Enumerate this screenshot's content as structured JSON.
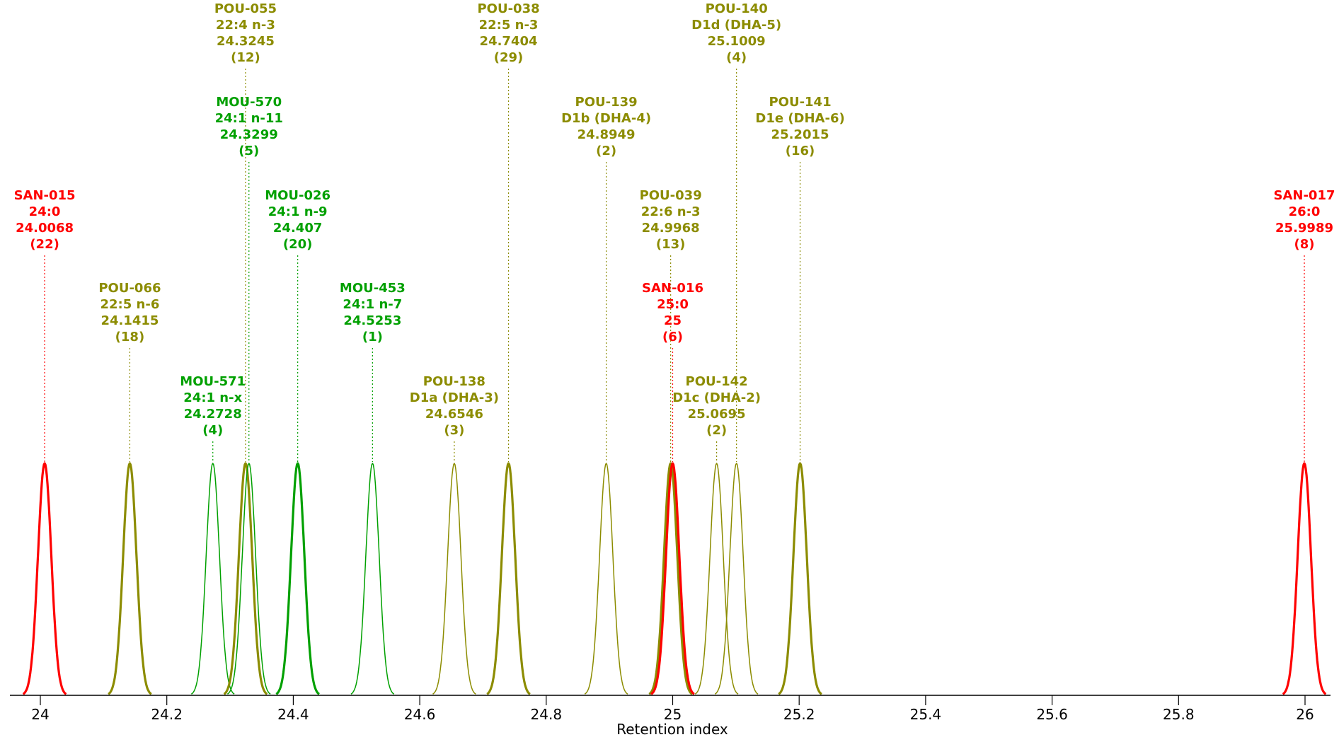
{
  "chart_data": {
    "type": "line",
    "xlabel": "Retention index",
    "xlim": [
      23.95,
      26.05
    ],
    "x_ticks": [
      {
        "value": 24,
        "label": "24"
      },
      {
        "value": 24.2,
        "label": "24.2"
      },
      {
        "value": 24.4,
        "label": "24.4"
      },
      {
        "value": 24.6,
        "label": "24.6"
      },
      {
        "value": 24.8,
        "label": "24.8"
      },
      {
        "value": 25,
        "label": "25"
      },
      {
        "value": 25.2,
        "label": "25.2"
      },
      {
        "value": 25.4,
        "label": "25.4"
      },
      {
        "value": 25.6,
        "label": "25.6"
      },
      {
        "value": 25.8,
        "label": "25.8"
      },
      {
        "value": 26,
        "label": "26"
      }
    ],
    "grid": false,
    "colors": {
      "SAN": "#ff0000",
      "MOU": "#00a000",
      "POU": "#8c8c00"
    },
    "peaks": [
      {
        "id": "SAN-015",
        "name": "24:0",
        "x": 24.0068,
        "x_label": "24.0068",
        "n": "(22)",
        "group": "SAN",
        "weight": "bold",
        "tier": 4
      },
      {
        "id": "POU-066",
        "name": "22:5 n-6",
        "x": 24.1415,
        "x_label": "24.1415",
        "n": "(18)",
        "group": "POU",
        "weight": "bold",
        "tier": 5
      },
      {
        "id": "MOU-571",
        "name": "24:1 n-x",
        "x": 24.2728,
        "x_label": "24.2728",
        "n": "(4)",
        "group": "MOU",
        "weight": "thin",
        "tier": 6
      },
      {
        "id": "POU-055",
        "name": "22:4 n-3",
        "x": 24.3245,
        "x_label": "24.3245",
        "n": "(12)",
        "group": "POU",
        "weight": "bold",
        "tier": 1
      },
      {
        "id": "MOU-570",
        "name": "24:1 n-11",
        "x": 24.3299,
        "x_label": "24.3299",
        "n": "(5)",
        "group": "MOU",
        "weight": "thin",
        "tier": 2
      },
      {
        "id": "MOU-026",
        "name": "24:1 n-9",
        "x": 24.407,
        "x_label": "24.407",
        "n": "(20)",
        "group": "MOU",
        "weight": "bold",
        "tier": 4
      },
      {
        "id": "MOU-453",
        "name": "24:1 n-7",
        "x": 24.5253,
        "x_label": "24.5253",
        "n": "(1)",
        "group": "MOU",
        "weight": "thin",
        "tier": 5
      },
      {
        "id": "POU-138",
        "name": "D1a (DHA-3)",
        "x": 24.6546,
        "x_label": "24.6546",
        "n": "(3)",
        "group": "POU",
        "weight": "thin",
        "tier": 6
      },
      {
        "id": "POU-038",
        "name": "22:5 n-3",
        "x": 24.7404,
        "x_label": "24.7404",
        "n": "(29)",
        "group": "POU",
        "weight": "bold",
        "tier": 1
      },
      {
        "id": "POU-139",
        "name": "D1b (DHA-4)",
        "x": 24.8949,
        "x_label": "24.8949",
        "n": "(2)",
        "group": "POU",
        "weight": "thin",
        "tier": 2
      },
      {
        "id": "POU-039",
        "name": "22:6 n-3",
        "x": 24.9968,
        "x_label": "24.9968",
        "n": "(13)",
        "group": "POU",
        "weight": "bold",
        "tier": 4
      },
      {
        "id": "SAN-016",
        "name": "25:0",
        "x": 25,
        "x_label": "25",
        "n": "(6)",
        "group": "SAN",
        "weight": "bold",
        "tier": 5
      },
      {
        "id": "POU-142",
        "name": "D1c (DHA-2)",
        "x": 25.0695,
        "x_label": "25.0695",
        "n": "(2)",
        "group": "POU",
        "weight": "thin",
        "tier": 6
      },
      {
        "id": "POU-140",
        "name": "D1d (DHA-5)",
        "x": 25.1009,
        "x_label": "25.1009",
        "n": "(4)",
        "group": "POU",
        "weight": "thin",
        "tier": 1
      },
      {
        "id": "POU-141",
        "name": "D1e (DHA-6)",
        "x": 25.2015,
        "x_label": "25.2015",
        "n": "(16)",
        "group": "POU",
        "weight": "bold",
        "tier": 2
      },
      {
        "id": "SAN-017",
        "name": "26:0",
        "x": 25.9989,
        "x_label": "25.9989",
        "n": "(8)",
        "group": "SAN",
        "weight": "bold",
        "tier": 4
      }
    ]
  }
}
